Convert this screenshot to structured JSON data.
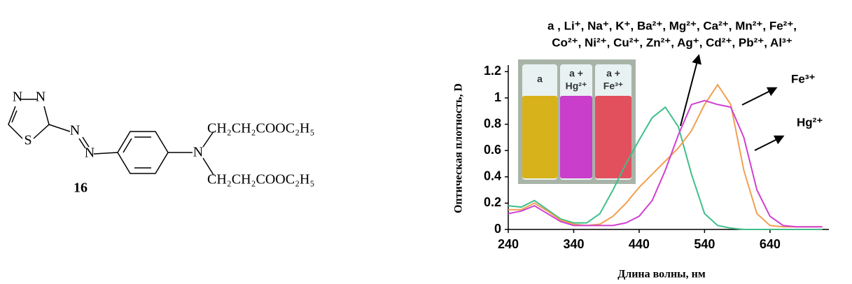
{
  "structure": {
    "atoms": [
      "N",
      "N",
      "S",
      "N",
      "N",
      "N"
    ],
    "substituents": [
      "CH₂CH₂COOC₂H₅",
      "CH₂CH₂COOC₂H₅"
    ],
    "label": "16"
  },
  "chart_data": {
    "type": "line",
    "x_label": "Длина волны, нм",
    "y_label": "Оптическая плотность,  D",
    "annotations": [
      "a , Li⁺, Na⁺, K⁺, Ba²⁺, Mg²⁺, Ca²⁺, Mn²⁺, Fe²⁺,",
      "Co²⁺, Ni²⁺, Cu²⁺, Zn²⁺, Ag⁺, Cd²⁺, Pb²⁺, Al³⁺",
      "Fe³⁺",
      "Hg²⁺"
    ],
    "inset_labels": [
      "a",
      "a +",
      "Hg²⁺",
      "a +",
      "Fe³⁺"
    ],
    "x": [
      240,
      260,
      280,
      300,
      320,
      340,
      360,
      380,
      400,
      420,
      440,
      460,
      480,
      500,
      520,
      540,
      560,
      580,
      600,
      620,
      640,
      660,
      680,
      700,
      720
    ],
    "series": [
      {
        "color": "#3fbf8a",
        "values": [
          0.18,
          0.17,
          0.22,
          0.15,
          0.08,
          0.05,
          0.05,
          0.12,
          0.3,
          0.5,
          0.68,
          0.85,
          0.93,
          0.78,
          0.42,
          0.12,
          0.03,
          0.01,
          0,
          0,
          0,
          0,
          0,
          0,
          0
        ]
      },
      {
        "color": "#f0a050",
        "values": [
          0.15,
          0.15,
          0.2,
          0.14,
          0.07,
          0.04,
          0.03,
          0.04,
          0.1,
          0.2,
          0.32,
          0.42,
          0.52,
          0.62,
          0.75,
          0.95,
          1.1,
          0.95,
          0.45,
          0.12,
          0.03,
          0.02,
          0.02,
          0.02,
          0.02
        ]
      },
      {
        "color": "#d040d0",
        "values": [
          0.12,
          0.14,
          0.18,
          0.12,
          0.06,
          0.03,
          0.03,
          0.03,
          0.03,
          0.05,
          0.1,
          0.22,
          0.45,
          0.72,
          0.95,
          0.98,
          0.95,
          0.93,
          0.7,
          0.3,
          0.1,
          0.03,
          0.02,
          0.02,
          0.02
        ]
      }
    ],
    "xlim": [
      240,
      730
    ],
    "ylim": [
      0,
      1.25
    ],
    "xticks": [
      240,
      340,
      440,
      540,
      640
    ],
    "yticks": [
      0,
      0.2,
      0.4,
      0.6,
      0.8,
      1,
      1.2
    ]
  }
}
